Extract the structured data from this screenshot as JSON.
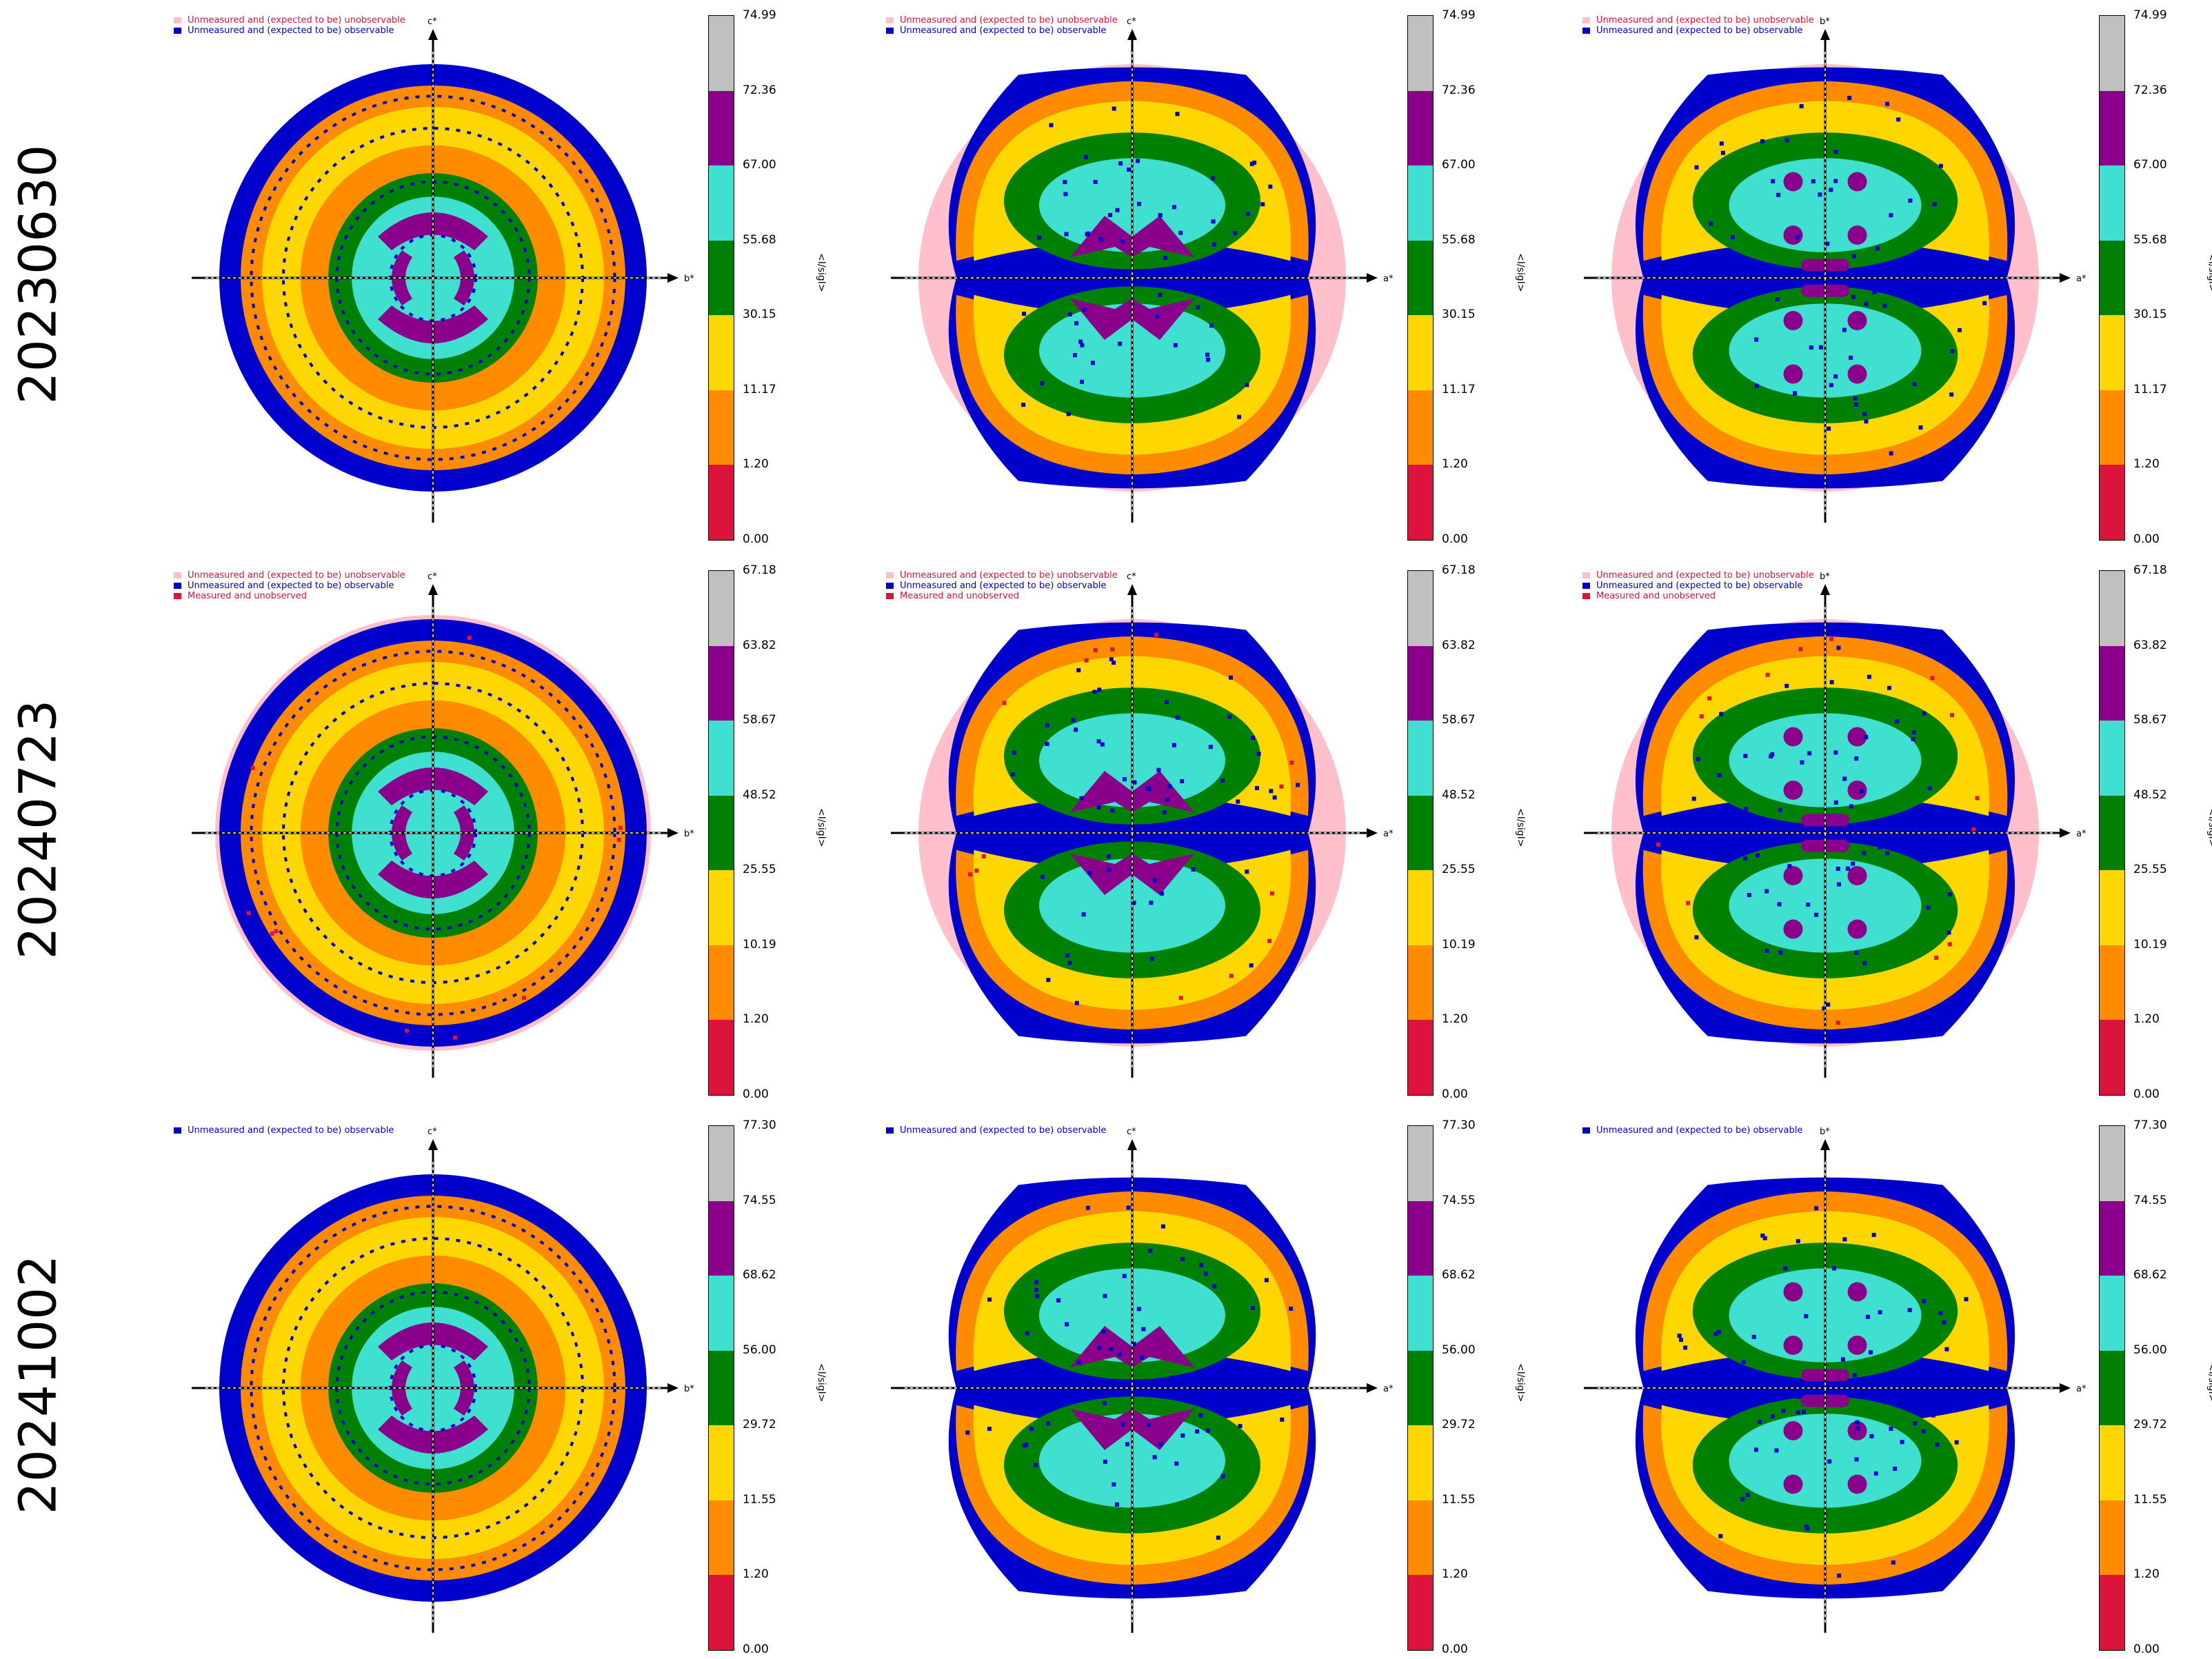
{
  "rows": [
    {
      "label": "20230630",
      "legend": [
        {
          "text": "Unmeasured and (expected to be) unobservable",
          "color": "#ffc0cb",
          "textcolor": "#dc143c"
        },
        {
          "text": "Unmeasured and (expected to be) observable",
          "color": "#0000cd",
          "textcolor": "#0000cd"
        }
      ],
      "colorbar_ticks": [
        "0.00",
        "1.20",
        "11.17",
        "30.15",
        "55.68",
        "67.00",
        "72.36",
        "74.99"
      ]
    },
    {
      "label": "20240723",
      "legend": [
        {
          "text": "Unmeasured and (expected to be) unobservable",
          "color": "#ffc0cb",
          "textcolor": "#dc143c"
        },
        {
          "text": "Unmeasured and (expected to be) observable",
          "color": "#0000cd",
          "textcolor": "#0000cd"
        },
        {
          "text": "Measured and unobserved",
          "color": "#dc143c",
          "textcolor": "#dc143c"
        }
      ],
      "colorbar_ticks": [
        "0.00",
        "1.20",
        "10.19",
        "25.55",
        "48.52",
        "58.67",
        "63.82",
        "67.18"
      ]
    },
    {
      "label": "20241002",
      "legend": [
        {
          "text": "Unmeasured and (expected to be) observable",
          "color": "#0000cd",
          "textcolor": "#0000cd"
        }
      ],
      "colorbar_ticks": [
        "0.00",
        "1.20",
        "11.55",
        "29.72",
        "56.00",
        "68.62",
        "74.55",
        "77.30"
      ]
    }
  ],
  "columns": [
    {
      "h_axis": "b*",
      "v_axis": "c*"
    },
    {
      "h_axis": "a*",
      "v_axis": "c*"
    },
    {
      "h_axis": "a*",
      "v_axis": "b*"
    }
  ],
  "colorbar_label": "<I/sigI>",
  "colorbar_colors": [
    "#dc143c",
    "#ff8c00",
    "#ffd700",
    "#008000",
    "#40e0d0",
    "#8b008b",
    "#c0c0c0"
  ],
  "colors": {
    "observable_unmeasured": "#0000cd",
    "unobservable": "#ffc0cb",
    "measured_unobserved": "#dc143c"
  },
  "chart_data": [
    {
      "type": "heatmap",
      "dataset": "20230630",
      "plane": "b*c*",
      "xlabel": "b*",
      "ylabel": "c*",
      "colorbar": "<I/sigI>",
      "bin_edges": [
        0.0,
        1.2,
        11.17,
        30.15,
        55.68,
        67.0,
        72.36,
        74.99
      ]
    },
    {
      "type": "heatmap",
      "dataset": "20230630",
      "plane": "a*c*",
      "xlabel": "a*",
      "ylabel": "c*",
      "colorbar": "<I/sigI>",
      "bin_edges": [
        0.0,
        1.2,
        11.17,
        30.15,
        55.68,
        67.0,
        72.36,
        74.99
      ]
    },
    {
      "type": "heatmap",
      "dataset": "20230630",
      "plane": "a*b*",
      "xlabel": "a*",
      "ylabel": "b*",
      "colorbar": "<I/sigI>",
      "bin_edges": [
        0.0,
        1.2,
        11.17,
        30.15,
        55.68,
        67.0,
        72.36,
        74.99
      ]
    },
    {
      "type": "heatmap",
      "dataset": "20240723",
      "plane": "b*c*",
      "xlabel": "b*",
      "ylabel": "c*",
      "colorbar": "<I/sigI>",
      "bin_edges": [
        0.0,
        1.2,
        10.19,
        25.55,
        48.52,
        58.67,
        63.82,
        67.18
      ]
    },
    {
      "type": "heatmap",
      "dataset": "20240723",
      "plane": "a*c*",
      "xlabel": "a*",
      "ylabel": "c*",
      "colorbar": "<I/sigI>",
      "bin_edges": [
        0.0,
        1.2,
        10.19,
        25.55,
        48.52,
        58.67,
        63.82,
        67.18
      ]
    },
    {
      "type": "heatmap",
      "dataset": "20240723",
      "plane": "a*b*",
      "xlabel": "a*",
      "ylabel": "b*",
      "colorbar": "<I/sigI>",
      "bin_edges": [
        0.0,
        1.2,
        10.19,
        25.55,
        48.52,
        58.67,
        63.82,
        67.18
      ]
    },
    {
      "type": "heatmap",
      "dataset": "20241002",
      "plane": "b*c*",
      "xlabel": "b*",
      "ylabel": "c*",
      "colorbar": "<I/sigI>",
      "bin_edges": [
        0.0,
        1.2,
        11.55,
        29.72,
        56.0,
        68.62,
        74.55,
        77.3
      ]
    },
    {
      "type": "heatmap",
      "dataset": "20241002",
      "plane": "a*c*",
      "xlabel": "a*",
      "ylabel": "c*",
      "colorbar": "<I/sigI>",
      "bin_edges": [
        0.0,
        1.2,
        11.55,
        29.72,
        56.0,
        68.62,
        74.55,
        77.3
      ]
    },
    {
      "type": "heatmap",
      "dataset": "20241002",
      "plane": "a*b*",
      "xlabel": "a*",
      "ylabel": "b*",
      "colorbar": "<I/sigI>",
      "bin_edges": [
        0.0,
        1.2,
        11.55,
        29.72,
        56.0,
        68.62,
        74.55,
        77.3
      ]
    }
  ]
}
